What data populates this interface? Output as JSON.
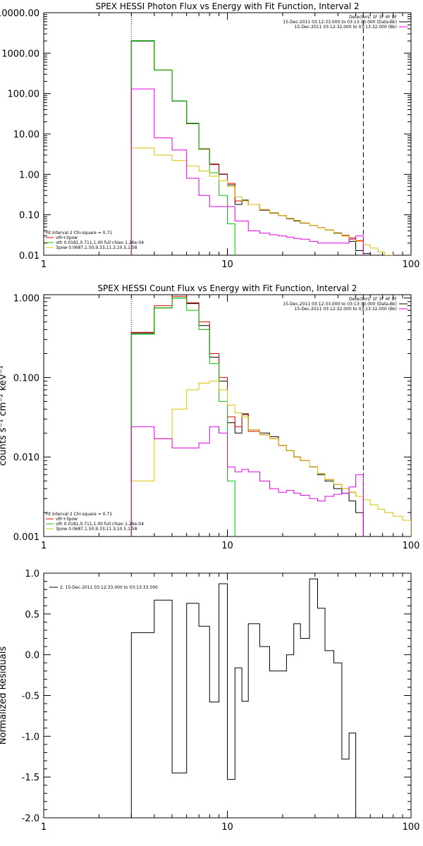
{
  "chart_data": [
    {
      "type": "line",
      "title": "SPEX HESSI Photon Flux vs Energy with Fit Function, Interval 2",
      "xscale": "log",
      "yscale": "log",
      "xlim": [
        1,
        100
      ],
      "ylim": [
        0.01,
        10000
      ],
      "xticks": [
        {
          "v": 1,
          "label": "1"
        },
        {
          "v": 10,
          "label": "10"
        },
        {
          "v": 100,
          "label": "100"
        }
      ],
      "yticks": [
        {
          "v": 0.01,
          "label": "0.01"
        },
        {
          "v": 0.1,
          "label": "0.10"
        },
        {
          "v": 1,
          "label": "1.00"
        },
        {
          "v": 10,
          "label": "10.00"
        },
        {
          "v": 100,
          "label": "100.00"
        },
        {
          "v": 1000,
          "label": "1000.00"
        },
        {
          "v": 10000,
          "label": "10000.00"
        }
      ],
      "vlines": [
        {
          "x": 3,
          "style": "dotted"
        },
        {
          "x": 55,
          "style": "dashed"
        }
      ],
      "header_right": [
        "Detectors: 1F 3F 4F 8F",
        "15-Dec-2011 03:12:33.000 to 03:13:33.000 (Data-Bk)",
        "15-Dec-2011 03:12:32.000 to 03:13:32.000 (Bk)"
      ],
      "fit_info": [
        {
          "text": "Fit Interval  2   Chi-square = 0.71",
          "color": "#000000"
        },
        {
          "text": "vth+3pow",
          "color": "#e00000"
        },
        {
          "text": "vth 0.0181,0.711,1.00  full chian 1.26e-04",
          "color": "#00c800"
        },
        {
          "text": "3pow 0.0687,1.50,9.33,11.3,10.5,1.58",
          "color": "#d8c000"
        }
      ],
      "bin_edges": [
        3,
        4,
        5,
        6,
        7,
        8,
        9,
        10,
        11,
        12,
        13,
        15,
        17,
        19,
        21,
        23,
        25,
        28,
        31,
        34,
        38,
        42,
        46,
        50,
        55,
        60,
        66,
        72,
        80
      ],
      "series": [
        {
          "name": "Data-Bk",
          "color": "#000000",
          "values": [
            2000,
            380,
            65,
            18,
            4.2,
            1.8,
            1.0,
            0.55,
            0.18,
            0.23,
            0.18,
            0.13,
            0.11,
            0.095,
            0.08,
            0.07,
            0.062,
            0.055,
            0.048,
            0.042,
            0.035,
            0.03,
            0.022,
            0.013,
            0.011,
            null,
            null,
            null
          ]
        },
        {
          "name": "vth+3pow",
          "color": "#e00000",
          "values": [
            2050,
            380,
            66,
            18.5,
            4.3,
            1.75,
            1.02,
            0.6,
            0.22,
            0.22,
            0.18,
            0.135,
            0.112,
            0.095,
            0.082,
            0.072,
            0.063,
            0.055,
            0.048,
            0.042,
            0.036,
            0.031,
            0.027,
            0.023,
            null,
            null,
            null,
            null
          ]
        },
        {
          "name": "vth",
          "color": "#00c800",
          "values": [
            2050,
            380,
            66,
            18.5,
            4.2,
            1.1,
            0.3,
            0.06,
            0.008,
            null,
            null,
            null,
            null,
            null,
            null,
            null,
            null,
            null,
            null,
            null,
            null,
            null,
            null,
            null,
            null,
            null,
            null,
            null
          ]
        },
        {
          "name": "3pow",
          "color": "#d8c000",
          "values": [
            4.5,
            3.0,
            2.2,
            1.6,
            1.2,
            0.9,
            0.7,
            0.5,
            0.28,
            0.22,
            0.18,
            0.135,
            0.112,
            0.095,
            0.082,
            0.072,
            0.063,
            0.055,
            0.048,
            0.042,
            0.036,
            0.03,
            0.026,
            0.022,
            0.018,
            0.015,
            0.012,
            0.01
          ]
        },
        {
          "name": "Bk",
          "color": "#e000e0",
          "values": [
            130,
            8,
            4,
            0.8,
            0.3,
            0.16,
            0.16,
            0.16,
            0.07,
            0.07,
            0.04,
            0.035,
            0.032,
            0.03,
            0.028,
            0.026,
            0.025,
            0.022,
            0.02,
            0.02,
            0.02,
            0.02,
            0.025,
            0.03,
            null,
            null,
            null,
            null
          ]
        }
      ]
    },
    {
      "type": "line",
      "title": "SPEX HESSI Count Flux vs Energy with Fit Function, Interval 2",
      "ylabel": "counts s⁻¹ cm⁻² keV⁻¹",
      "xscale": "log",
      "yscale": "log",
      "xlim": [
        1,
        100
      ],
      "ylim": [
        0.001,
        1.1
      ],
      "xticks": [
        {
          "v": 1,
          "label": "1"
        },
        {
          "v": 10,
          "label": "10"
        },
        {
          "v": 100,
          "label": "100"
        }
      ],
      "yticks": [
        {
          "v": 0.001,
          "label": "0.001"
        },
        {
          "v": 0.01,
          "label": "0.010"
        },
        {
          "v": 0.1,
          "label": "0.100"
        },
        {
          "v": 1,
          "label": "1.000"
        }
      ],
      "vlines": [
        {
          "x": 3,
          "style": "dotted"
        },
        {
          "x": 55,
          "style": "dashed"
        }
      ],
      "header_right": [
        "Detectors: 1F 3F 4F 8F",
        "15-Dec-2011 03:12:33.000 to 03:13:33.000 (Data-Bk)",
        "15-Dec-2011 03:12:32.000 to 03:13:32.000 (Bk)"
      ],
      "fit_info": [
        {
          "text": "Fit Interval  2   Chi-square = 0.71",
          "color": "#000000"
        },
        {
          "text": "vth+3pow",
          "color": "#e00000"
        },
        {
          "text": "vth 0.0181,0.711,1.00  full chian 1.26e-04",
          "color": "#00c800"
        },
        {
          "text": "3pow 0.0687,1.50,9.33,11.3,10.5,1.58",
          "color": "#d8c000"
        }
      ],
      "bin_edges": [
        3,
        4,
        5,
        6,
        7,
        8,
        9,
        10,
        11,
        12,
        13,
        15,
        17,
        19,
        21,
        23,
        25,
        28,
        31,
        34,
        38,
        42,
        46,
        50,
        55,
        60,
        66,
        72,
        80,
        90,
        100
      ],
      "series": [
        {
          "name": "Data-Bk",
          "color": "#000000",
          "values": [
            0.36,
            0.75,
            1.0,
            0.85,
            0.45,
            0.18,
            0.09,
            0.027,
            0.02,
            0.035,
            0.022,
            0.02,
            0.018,
            0.014,
            0.012,
            0.01,
            0.009,
            0.0075,
            0.006,
            0.005,
            0.004,
            0.0035,
            0.0028,
            0.002,
            null,
            null,
            null,
            null,
            null,
            null
          ]
        },
        {
          "name": "vth+3pow",
          "color": "#e00000",
          "values": [
            0.37,
            0.8,
            1.05,
            0.87,
            0.5,
            0.2,
            0.1,
            0.032,
            0.024,
            0.034,
            0.021,
            0.019,
            0.017,
            0.014,
            0.012,
            0.01,
            0.009,
            0.0075,
            0.0062,
            0.0052,
            0.0045,
            0.004,
            0.0036,
            0.0032,
            null,
            null,
            null,
            null,
            null,
            null
          ]
        },
        {
          "name": "vth",
          "color": "#00c800",
          "values": [
            0.35,
            0.75,
            1.0,
            0.7,
            0.4,
            0.15,
            0.05,
            0.005,
            null,
            null,
            null,
            null,
            null,
            null,
            null,
            null,
            null,
            null,
            null,
            null,
            null,
            null,
            null,
            null,
            null,
            null,
            null,
            null,
            null,
            null
          ]
        },
        {
          "name": "3pow",
          "color": "#d8c000",
          "values": [
            0.005,
            0.017,
            0.04,
            0.07,
            0.085,
            0.09,
            0.07,
            0.045,
            0.036,
            0.032,
            0.022,
            0.019,
            0.017,
            0.014,
            0.012,
            0.01,
            0.009,
            0.0075,
            0.0062,
            0.0052,
            0.0045,
            0.004,
            0.0036,
            0.0032,
            0.0029,
            0.0025,
            0.0022,
            0.002,
            0.0018,
            0.0016
          ]
        },
        {
          "name": "Bk",
          "color": "#e000e0",
          "values": [
            0.024,
            0.017,
            0.013,
            0.013,
            0.015,
            0.024,
            0.02,
            0.0075,
            0.0065,
            0.007,
            0.0065,
            0.005,
            0.004,
            0.0036,
            0.0038,
            0.0035,
            0.0033,
            0.003,
            0.0028,
            0.0032,
            0.0034,
            0.0035,
            0.0042,
            0.006,
            null,
            null,
            null,
            null,
            null,
            null
          ]
        }
      ]
    },
    {
      "type": "line",
      "title": "",
      "ylabel": "Normalized Residuals",
      "xscale": "log",
      "yscale": "linear",
      "xlim": [
        1,
        100
      ],
      "ylim": [
        -2.0,
        1.0
      ],
      "xticks": [
        {
          "v": 1,
          "label": "1"
        },
        {
          "v": 10,
          "label": "10"
        },
        {
          "v": 100,
          "label": "100"
        }
      ],
      "yticks": [
        {
          "v": 1.0,
          "label": "1.0"
        },
        {
          "v": 0.5,
          "label": "0.5"
        },
        {
          "v": 0.0,
          "label": "0.0"
        },
        {
          "v": -0.5,
          "label": "-0.5"
        },
        {
          "v": -1.0,
          "label": "-1.0"
        },
        {
          "v": -1.5,
          "label": "-1.5"
        },
        {
          "v": -2.0,
          "label": "-2.0"
        }
      ],
      "vlines": [],
      "legend": {
        "text": "2. 15-Dec-2011 03:12:33.000 to 03:13:33.000",
        "placement": "top-left"
      },
      "bin_edges": [
        3,
        4,
        5,
        6,
        7,
        8,
        9,
        10,
        11,
        12,
        13,
        15,
        17,
        19,
        21,
        23,
        25,
        28,
        31,
        34,
        38,
        42,
        46,
        50,
        55
      ],
      "series": [
        {
          "name": "",
          "color": "#000000",
          "values": [
            0.27,
            0.67,
            -1.45,
            0.63,
            0.35,
            -0.58,
            0.87,
            -1.53,
            -0.16,
            -0.57,
            0.38,
            0.1,
            -0.2,
            -0.2,
            0.0,
            0.38,
            0.2,
            0.93,
            0.57,
            0.05,
            -0.1,
            -1.28,
            -0.96,
            -2.05
          ]
        }
      ]
    }
  ]
}
